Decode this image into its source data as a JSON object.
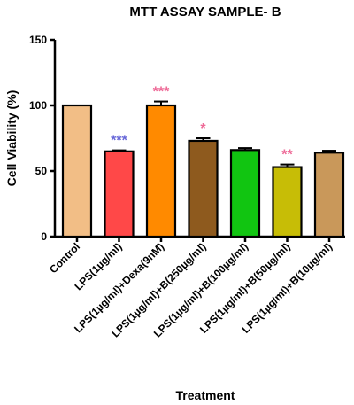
{
  "chart_data": {
    "type": "bar",
    "title": "MTT ASSAY SAMPLE- B",
    "xlabel": "Treatment",
    "ylabel": "Cell Viability (%)",
    "ylim": [
      0,
      150
    ],
    "yticks": [
      "0",
      "50",
      "100",
      "150"
    ],
    "grid": false,
    "legend": "none",
    "categories": [
      "Control",
      "LPS(1µg/ml)",
      "LPS(1µg/ml)+Dexa(9nM)",
      "LPS(1µg/ml)+B(250µg/ml)",
      "LPS(1µg/ml)+B(100µg/ml)",
      "LPS(1µg/ml)+B(50µg/ml)",
      "LPS(1µg/ml)+B(10µg/ml)"
    ],
    "values": [
      100,
      65,
      100,
      73,
      66,
      53,
      64
    ],
    "errors": [
      0,
      0.8,
      3,
      2,
      1.5,
      2,
      1.5
    ],
    "bar_colors": [
      "#F2BE86",
      "#FF4848",
      "#FF8A00",
      "#8E5A1E",
      "#11C511",
      "#C7BD06",
      "#C9985A"
    ],
    "significance": [
      {
        "index": 1,
        "label": "***",
        "color": "#6868D8"
      },
      {
        "index": 2,
        "label": "***",
        "color": "#EE6A97"
      },
      {
        "index": 3,
        "label": "*",
        "color": "#EE6A97"
      },
      {
        "index": 5,
        "label": "**",
        "color": "#EE6A97"
      }
    ]
  }
}
